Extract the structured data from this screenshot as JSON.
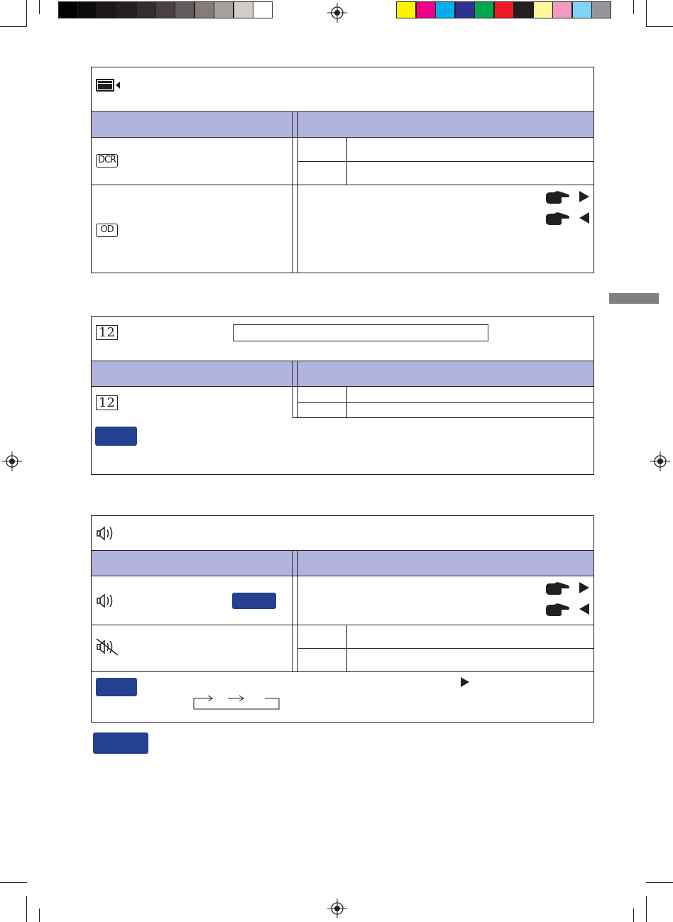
{
  "color_bar": {
    "grays": [
      "#000000",
      "#0d0a0b",
      "#1d1718",
      "#262021",
      "#352c2d",
      "#4a4042",
      "#625a5b",
      "#857b7b",
      "#a89f9f",
      "#d3cccb",
      "#ffffff"
    ],
    "colors": [
      "#fff200",
      "#ec008c",
      "#00aeef",
      "#2e3192",
      "#00a651",
      "#ed1c24",
      "#231f20",
      "#fff799",
      "#f49ac1",
      "#7fd3f7",
      "#939598"
    ]
  },
  "section1": {
    "header_icon": "picture-adjust-icon",
    "row1_icon": "DCR",
    "row2_icon": "OD"
  },
  "section2": {
    "header_icon": "12",
    "row1_icon": "12"
  },
  "section3": {
    "header_icon": "speaker-icon",
    "row1_icon": "speaker-icon",
    "row2_icon": "mute-icon"
  },
  "accent_colors": {
    "header": "#b3b3e0",
    "badge": "#25408f",
    "tab": "#808080"
  }
}
